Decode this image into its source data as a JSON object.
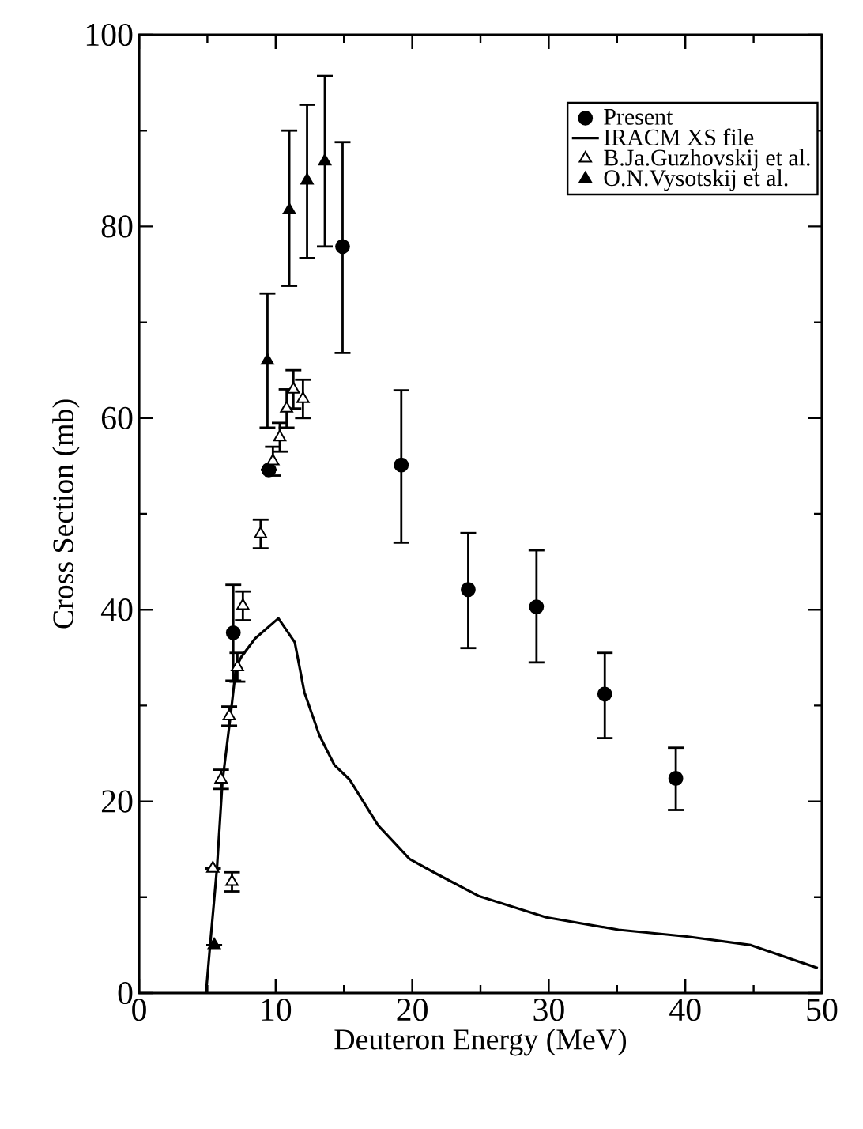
{
  "chart_data": {
    "type": "scatter",
    "xlabel": "Deuteron Energy (MeV)",
    "ylabel": "Cross Section (mb)",
    "xlim": [
      0,
      50
    ],
    "ylim": [
      0,
      100
    ],
    "xticks": [
      0,
      10,
      20,
      30,
      40,
      50
    ],
    "yticks": [
      0,
      20,
      40,
      60,
      80,
      100
    ],
    "grid": false,
    "legend": "top right",
    "series": [
      {
        "name": "Present",
        "marker": "circle",
        "color": "#000000",
        "x": [
          6.9,
          9.5,
          14.9,
          19.2,
          24.1,
          29.1,
          34.1,
          39.3
        ],
        "values": [
          37.6,
          54.6,
          77.9,
          55.1,
          42.1,
          40.3,
          31.2,
          22.4
        ],
        "errors": [
          5,
          null,
          [
            66.8,
            88.8
          ],
          [
            47,
            62.9
          ],
          [
            36,
            48
          ],
          [
            34.5,
            46.2
          ],
          [
            26.6,
            35.5
          ],
          [
            19.1,
            25.6
          ]
        ]
      },
      {
        "name": "IRACM XS file",
        "type": "line",
        "marker": "none",
        "line_style": "solid",
        "color": "#000000",
        "x": [
          4.9,
          5.2,
          5.7,
          6.1,
          6.7,
          7.1,
          7.5,
          8.5,
          10.2,
          11.4,
          12.1,
          13.2,
          14.3,
          15.4,
          17.5,
          19.8,
          21.7,
          24.9,
          29.8,
          35.1,
          40.1,
          44.8,
          49.7
        ],
        "values": [
          0,
          5,
          13,
          22,
          29,
          34,
          35.1,
          37,
          39.1,
          36.6,
          31.4,
          26.9,
          23.8,
          22.3,
          17.5,
          14.0,
          12.5,
          10.1,
          7.9,
          6.6,
          5.9,
          5.0,
          2.6
        ]
      },
      {
        "name": "B.Ja.Guzhovskij et al.",
        "marker": "triangle",
        "color": "#ffffff",
        "x": [
          5.4,
          6.8,
          6.0,
          6.6,
          7.2,
          7.6,
          8.9,
          9.8,
          10.3,
          10.8,
          11.3,
          12.0
        ],
        "values": [
          13.0,
          11.6,
          22.3,
          28.9,
          34.0,
          40.4,
          47.9,
          55.5,
          58.0,
          61.0,
          63.0,
          62.0
        ],
        "errors": [
          null,
          1,
          1,
          1,
          1.5,
          1.5,
          1.5,
          1.5,
          1.5,
          2,
          2,
          2
        ]
      },
      {
        "name": "O.N.Vysotskij et al.",
        "marker": "triangle",
        "color": "#000000",
        "x": [
          5.5,
          9.4,
          11.0,
          12.3,
          13.6
        ],
        "values": [
          5.0,
          66.0,
          81.7,
          84.8,
          86.8
        ],
        "errors": [
          null,
          [
            59,
            73
          ],
          [
            73.8,
            90
          ],
          [
            76.7,
            92.7
          ],
          [
            77.9,
            95.7
          ]
        ]
      }
    ]
  }
}
